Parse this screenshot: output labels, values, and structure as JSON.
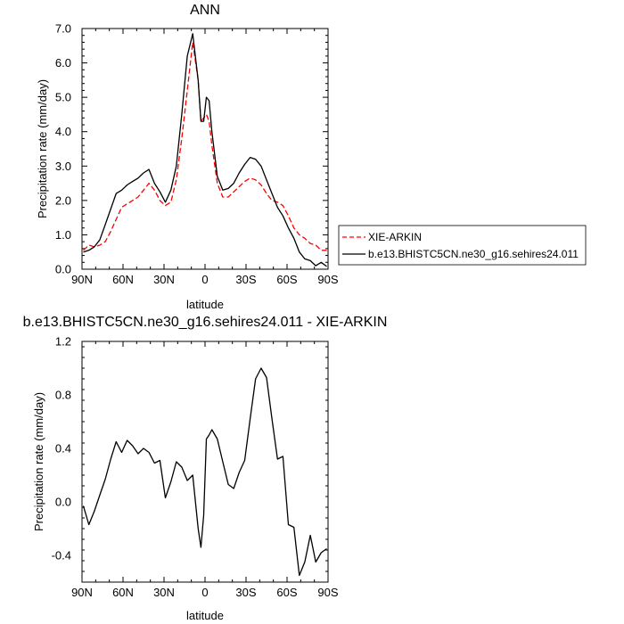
{
  "chart_data": [
    {
      "type": "line",
      "title": "ANN",
      "xlabel": "latitude",
      "ylabel": "Precipitation rate (mm/day)",
      "xlim": [
        90,
        -90
      ],
      "ylim": [
        0,
        7
      ],
      "x_ticks": [
        90,
        60,
        30,
        0,
        -30,
        -60,
        -90
      ],
      "x_tick_labels": [
        "90N",
        "60N",
        "30N",
        "0",
        "30S",
        "60S",
        "90S"
      ],
      "y_ticks": [
        0,
        1,
        2,
        3,
        4,
        5,
        6,
        7
      ],
      "y_tick_labels": [
        "0.0",
        "1.0",
        "2.0",
        "3.0",
        "4.0",
        "5.0",
        "6.0",
        "7.0"
      ],
      "legend_position": "right",
      "series": [
        {
          "name": "XIE-ARKIN",
          "color": "#ff0000",
          "dash": "dashed",
          "x": [
            89,
            85,
            81,
            77,
            73,
            69,
            65,
            61,
            57,
            53,
            49,
            45,
            41,
            37,
            33,
            29,
            25,
            21,
            17,
            13,
            9,
            5,
            3,
            1,
            -1,
            -3,
            -5,
            -9,
            -13,
            -17,
            -21,
            -25,
            -29,
            -33,
            -37,
            -41,
            -45,
            -49,
            -53,
            -57,
            -61,
            -65,
            -69,
            -73,
            -77,
            -81,
            -85,
            -89
          ],
          "y": [
            0.55,
            0.7,
            0.65,
            0.7,
            0.8,
            1.1,
            1.45,
            1.8,
            1.9,
            2.0,
            2.1,
            2.3,
            2.5,
            2.3,
            2.0,
            1.85,
            1.95,
            2.6,
            3.8,
            5.2,
            6.6,
            5.5,
            4.3,
            4.4,
            4.5,
            4.3,
            3.6,
            2.5,
            2.1,
            2.1,
            2.25,
            2.4,
            2.55,
            2.65,
            2.6,
            2.45,
            2.2,
            2.0,
            1.95,
            1.85,
            1.55,
            1.2,
            1.0,
            0.9,
            0.75,
            0.7,
            0.55,
            0.55
          ]
        },
        {
          "name": "b.e13.BHISTC5CN.ne30_g16.sehires24.011",
          "color": "#000000",
          "dash": "solid",
          "x": [
            89,
            85,
            81,
            77,
            73,
            69,
            65,
            61,
            57,
            53,
            49,
            45,
            41,
            37,
            33,
            29,
            25,
            21,
            17,
            13,
            9,
            5,
            3,
            1,
            -1,
            -3,
            -5,
            -9,
            -13,
            -17,
            -21,
            -25,
            -29,
            -33,
            -37,
            -41,
            -45,
            -49,
            -53,
            -57,
            -61,
            -65,
            -69,
            -73,
            -77,
            -81,
            -85,
            -89
          ],
          "y": [
            0.5,
            0.55,
            0.65,
            0.85,
            1.3,
            1.75,
            2.2,
            2.3,
            2.45,
            2.55,
            2.65,
            2.8,
            2.9,
            2.5,
            2.25,
            1.95,
            2.3,
            3.0,
            4.5,
            6.2,
            6.85,
            5.5,
            4.3,
            4.3,
            5.0,
            4.9,
            4.0,
            2.7,
            2.3,
            2.35,
            2.5,
            2.8,
            3.05,
            3.25,
            3.2,
            3.0,
            2.6,
            2.2,
            1.8,
            1.55,
            1.2,
            0.9,
            0.5,
            0.3,
            0.25,
            0.1,
            0.2,
            0.08
          ]
        }
      ]
    },
    {
      "type": "line",
      "title": "b.e13.BHISTC5CN.ne30_g16.sehires24.011 - XIE-ARKIN",
      "xlabel": "latitude",
      "ylabel": "Precipitation rate (mm/day)",
      "xlim": [
        90,
        -90
      ],
      "ylim": [
        -0.6,
        1.2
      ],
      "x_ticks": [
        90,
        60,
        30,
        0,
        -30,
        -60,
        -90
      ],
      "x_tick_labels": [
        "90N",
        "60N",
        "30N",
        "0",
        "30S",
        "60S",
        "90S"
      ],
      "y_ticks": [
        -0.4,
        0.0,
        0.4,
        0.8,
        1.2
      ],
      "y_tick_labels": [
        "-0.4",
        "0.0",
        "0.4",
        "0.8",
        "1.2"
      ],
      "series": [
        {
          "color": "#000000",
          "x": [
            89,
            85,
            81,
            77,
            73,
            69,
            65,
            61,
            57,
            53,
            49,
            45,
            41,
            37,
            33,
            29,
            25,
            21,
            17,
            13,
            9,
            5,
            3,
            1,
            -1,
            -3,
            -5,
            -9,
            -13,
            -17,
            -21,
            -25,
            -29,
            -33,
            -37,
            -41,
            -45,
            -49,
            -53,
            -57,
            -61,
            -65,
            -69,
            -73,
            -77,
            -81,
            -85,
            -89
          ],
          "y": [
            -0.03,
            -0.17,
            -0.07,
            0.05,
            0.17,
            0.32,
            0.45,
            0.37,
            0.46,
            0.42,
            0.36,
            0.4,
            0.37,
            0.29,
            0.31,
            0.03,
            0.15,
            0.3,
            0.26,
            0.16,
            0.2,
            -0.2,
            -0.34,
            -0.1,
            0.47,
            0.5,
            0.54,
            0.47,
            0.3,
            0.13,
            0.1,
            0.22,
            0.31,
            0.62,
            0.92,
            1.0,
            0.93,
            0.62,
            0.32,
            0.34,
            -0.17,
            -0.19,
            -0.55,
            -0.45,
            -0.25,
            -0.45,
            -0.38,
            -0.35
          ]
        }
      ]
    }
  ]
}
